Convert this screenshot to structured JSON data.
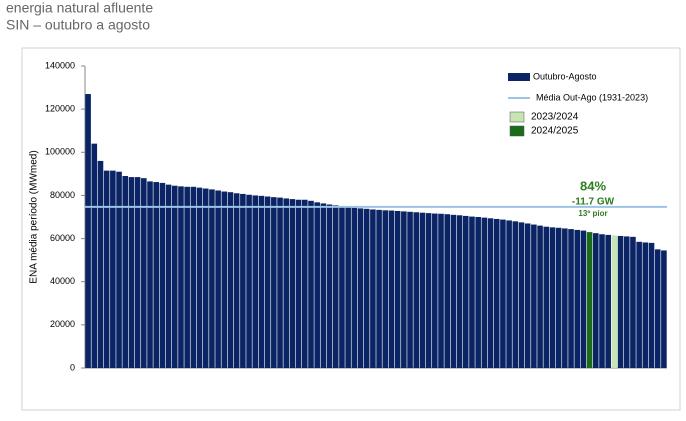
{
  "header": {
    "title": "energia natural afluente",
    "subtitle": "SIN – outubro a agosto"
  },
  "chart_data": {
    "type": "bar",
    "y_label": "ENA média período (MWmed)",
    "ylim": [
      0,
      140000
    ],
    "yticks": [
      0,
      20000,
      40000,
      60000,
      80000,
      100000,
      120000,
      140000
    ],
    "categories": [
      null,
      null,
      null,
      null,
      null,
      null,
      null,
      null,
      null,
      null,
      null,
      null,
      null,
      null,
      null,
      null,
      null,
      null,
      null,
      null,
      null,
      null,
      null,
      null,
      null,
      null,
      null,
      null,
      null,
      null,
      null,
      null,
      null,
      null,
      null,
      null,
      null,
      null,
      null,
      null,
      null,
      null,
      null,
      null,
      null,
      null,
      null,
      null,
      null,
      null,
      null,
      null,
      null,
      null,
      null,
      null,
      null,
      null,
      null,
      null,
      null,
      null,
      null,
      null,
      null,
      null,
      null,
      null,
      null,
      null,
      null,
      null,
      null,
      null,
      null,
      null,
      null,
      null,
      null,
      null,
      null,
      null,
      null,
      null,
      null,
      null,
      null,
      null,
      null,
      null,
      null,
      null,
      null,
      null
    ],
    "series": [
      {
        "name": "Outubro-Agosto",
        "color": "#0b2465",
        "values": [
          127000,
          104000,
          96000,
          91500,
          91500,
          91000,
          89000,
          88500,
          88500,
          88000,
          86500,
          86200,
          85800,
          85000,
          84500,
          84200,
          84000,
          84000,
          83600,
          83200,
          82800,
          82300,
          81800,
          81500,
          81000,
          80700,
          80300,
          80000,
          79800,
          79500,
          79200,
          79000,
          78600,
          78300,
          78000,
          78000,
          77500,
          76800,
          76300,
          75800,
          75400,
          75000,
          74700,
          74300,
          74000,
          73800,
          73500,
          73300,
          73100,
          73000,
          72800,
          72600,
          72400,
          72200,
          72000,
          71800,
          71600,
          71500,
          71300,
          71000,
          70800,
          70500,
          70200,
          70000,
          69700,
          69400,
          69100,
          68800,
          68400,
          68000,
          67500,
          67000,
          66500,
          66000,
          65500,
          65200,
          65000,
          64700,
          64400,
          64000,
          63700,
          null,
          62500,
          62000,
          61700,
          null,
          61200,
          61000,
          60800,
          58500,
          58200,
          58000,
          55000,
          54500
        ]
      },
      {
        "name": "2023/2024",
        "color": "#c6e5b3",
        "values": [
          null,
          null,
          null,
          null,
          null,
          null,
          null,
          null,
          null,
          null,
          null,
          null,
          null,
          null,
          null,
          null,
          null,
          null,
          null,
          null,
          null,
          null,
          null,
          null,
          null,
          null,
          null,
          null,
          null,
          null,
          null,
          null,
          null,
          null,
          null,
          null,
          null,
          null,
          null,
          null,
          null,
          null,
          null,
          null,
          null,
          null,
          null,
          null,
          null,
          null,
          null,
          null,
          null,
          null,
          null,
          null,
          null,
          null,
          null,
          null,
          null,
          null,
          null,
          null,
          null,
          null,
          null,
          null,
          null,
          null,
          null,
          null,
          null,
          null,
          null,
          null,
          null,
          null,
          null,
          null,
          null,
          null,
          null,
          null,
          null,
          61500,
          null,
          null,
          null,
          null,
          null,
          null,
          null,
          null
        ]
      },
      {
        "name": "2024/2025",
        "color": "#1a6b1a",
        "values": [
          null,
          null,
          null,
          null,
          null,
          null,
          null,
          null,
          null,
          null,
          null,
          null,
          null,
          null,
          null,
          null,
          null,
          null,
          null,
          null,
          null,
          null,
          null,
          null,
          null,
          null,
          null,
          null,
          null,
          null,
          null,
          null,
          null,
          null,
          null,
          null,
          null,
          null,
          null,
          null,
          null,
          null,
          null,
          null,
          null,
          null,
          null,
          null,
          null,
          null,
          null,
          null,
          null,
          null,
          null,
          null,
          null,
          null,
          null,
          null,
          null,
          null,
          null,
          null,
          null,
          null,
          null,
          null,
          null,
          null,
          null,
          null,
          null,
          null,
          null,
          null,
          null,
          null,
          null,
          null,
          null,
          63000,
          null,
          null,
          null,
          null,
          null,
          null,
          null,
          null,
          null,
          null,
          null,
          null
        ]
      }
    ],
    "reference_line": {
      "name": "Média Out-Ago (1931-2023)",
      "value": 74700,
      "color": "#9dc3e6"
    },
    "annotations": [
      "84%",
      "-11.7 GW",
      "13º pior"
    ],
    "annotation_color": "#2e7d1e"
  }
}
